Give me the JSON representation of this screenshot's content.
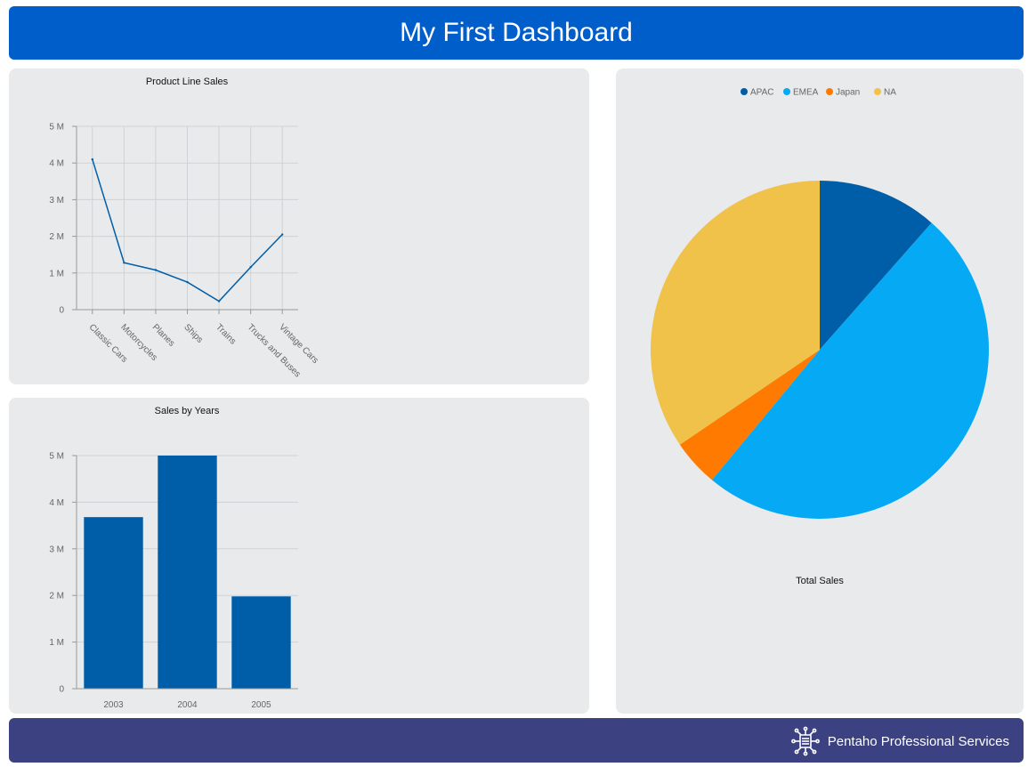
{
  "header": {
    "title": "My First Dashboard"
  },
  "footer": {
    "brand": "Pentaho Professional Services",
    "icon": "gear-chip-icon"
  },
  "colors": {
    "header_bg": "#005ecb",
    "footer_bg": "#3b4181",
    "panel_bg": "#e8eaeb",
    "series_blue": "#005ea8"
  },
  "chart_data": [
    {
      "id": "product-line-sales",
      "type": "line",
      "title": "Product Line Sales",
      "categories": [
        "Classic Cars",
        "Motorcycles",
        "Planes",
        "Ships",
        "Trains",
        "Trucks and Buses",
        "Vintage Cars"
      ],
      "values": [
        4100000,
        1280000,
        1080000,
        750000,
        230000,
        1160000,
        2050000
      ],
      "ylim": [
        0,
        5000000
      ],
      "yticks": [
        "0",
        "1 M",
        "2 M",
        "3 M",
        "4 M",
        "5 M"
      ],
      "grid": true,
      "color": "#005ea8"
    },
    {
      "id": "sales-by-years",
      "type": "bar",
      "title": "Sales by Years",
      "categories": [
        "2003",
        "2004",
        "2005"
      ],
      "values": [
        3680000,
        5000000,
        1980000
      ],
      "ylim": [
        0,
        5000000
      ],
      "yticks": [
        "0",
        "1 M",
        "2 M",
        "3 M",
        "4 M",
        "5 M"
      ],
      "grid": true,
      "color": "#005ea8"
    },
    {
      "id": "total-sales",
      "type": "pie",
      "title": "Total Sales",
      "legend_position": "top",
      "slices": [
        {
          "name": "APAC",
          "value": 11.5,
          "color": "#005ea8"
        },
        {
          "name": "EMEA",
          "value": 49.5,
          "color": "#06a9f4"
        },
        {
          "name": "Japan",
          "value": 4.5,
          "color": "#ff7a00"
        },
        {
          "name": "NA",
          "value": 34.5,
          "color": "#f1c24a"
        }
      ]
    }
  ]
}
